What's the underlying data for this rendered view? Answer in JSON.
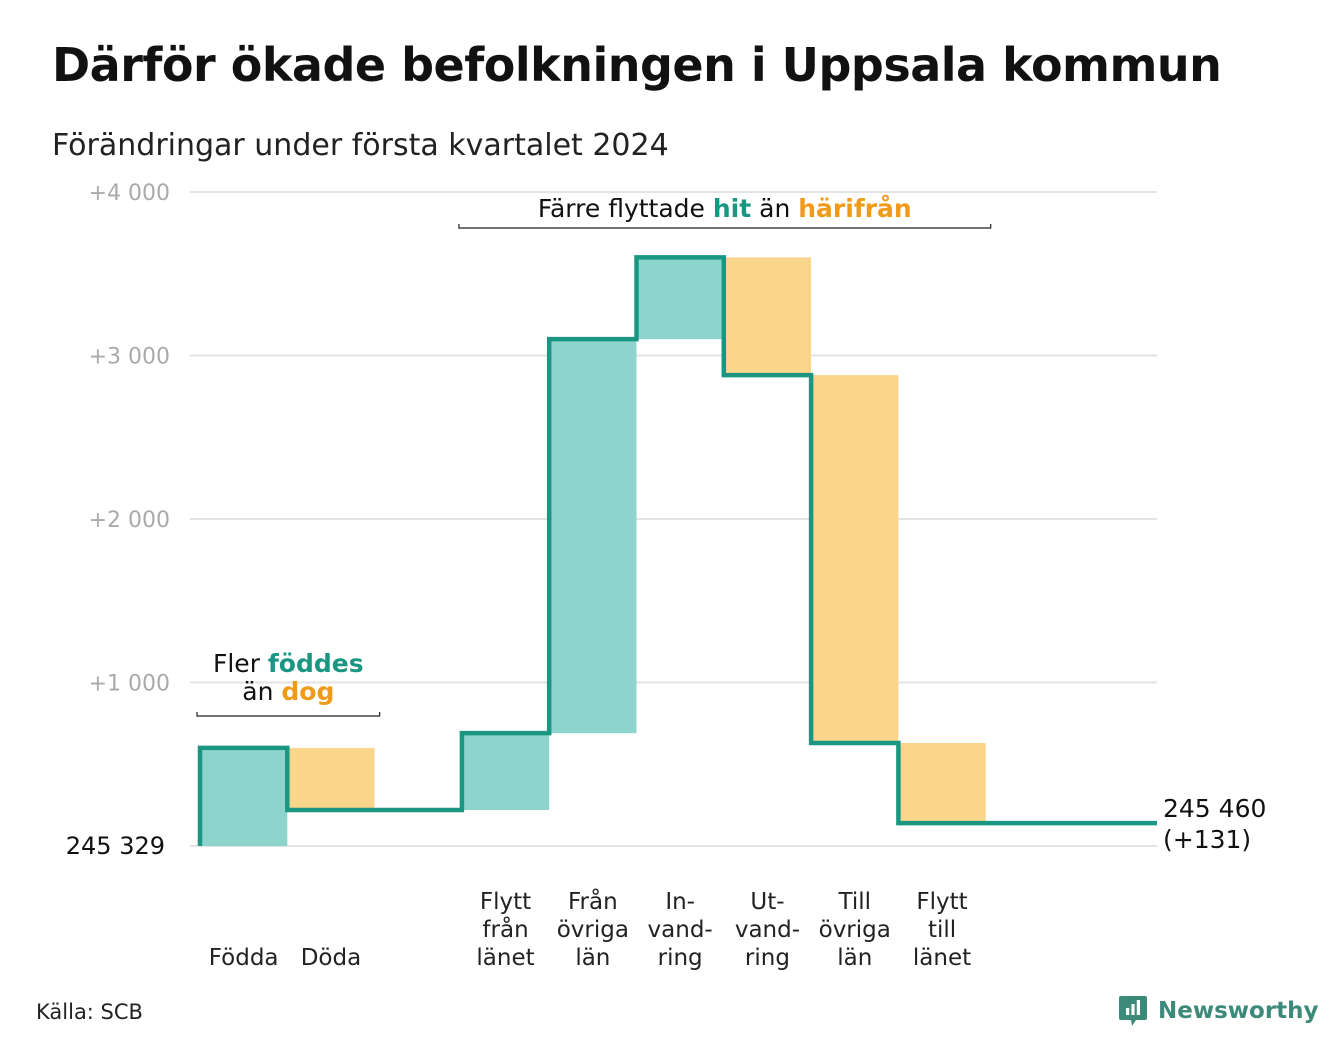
{
  "title": "Därför ökade befolkningen i Uppsala kommun",
  "subtitle": "Förändringar under första kvartalet 2024",
  "source": "Källa: SCB",
  "brand": "Newsworthy",
  "colors": {
    "inflow": "#8dd5cc",
    "outflow": "#fad58c",
    "line": "#1a9683",
    "orange_text": "#f09a1a",
    "grid": "#e3e3e3",
    "tick": "#aaaaaa"
  },
  "chart_data": {
    "type": "bar",
    "subtype": "waterfall",
    "start_value": 245329,
    "start_label": "245  329",
    "end_value": 245460,
    "end_label": "245 460",
    "end_change": "(+131)",
    "y_offset_ticks": [
      {
        "value": 1000,
        "label": "+1  000"
      },
      {
        "value": 2000,
        "label": "+2  000"
      },
      {
        "value": 3000,
        "label": "+3  000"
      },
      {
        "value": 4000,
        "label": "+4  000"
      }
    ],
    "ylim": [
      0,
      4000
    ],
    "grid": true,
    "steps": [
      {
        "label": [
          "Födda"
        ],
        "delta": 600,
        "kind": "in"
      },
      {
        "label": [
          "Döda"
        ],
        "delta": -380,
        "kind": "out"
      },
      {
        "label": [],
        "delta": 0,
        "kind": "gap"
      },
      {
        "label": [
          "Flytt",
          "från",
          "länet"
        ],
        "delta": 470,
        "kind": "in"
      },
      {
        "label": [
          "Från",
          "övriga",
          "län"
        ],
        "delta": 2410,
        "kind": "in"
      },
      {
        "label": [
          "In-",
          "vand-",
          "ring"
        ],
        "delta": 500,
        "kind": "in"
      },
      {
        "label": [
          "Ut-",
          "vand-",
          "ring"
        ],
        "delta": -720,
        "kind": "out"
      },
      {
        "label": [
          "Till",
          "övriga",
          "län"
        ],
        "delta": -2250,
        "kind": "out"
      },
      {
        "label": [
          "Flytt",
          "till",
          "länet"
        ],
        "delta": -490,
        "kind": "out"
      },
      {
        "label": [],
        "delta": 0,
        "kind": "gap"
      }
    ],
    "annotations": [
      {
        "parts": [
          [
            "Fler ",
            "plain"
          ],
          [
            "föddes",
            "in"
          ]
        ],
        "parts2": [
          [
            "än ",
            "plain"
          ],
          [
            "dog",
            "out"
          ]
        ],
        "from_step": 0,
        "to_step": 1
      },
      {
        "parts": [
          [
            "Färre flyttade ",
            "plain"
          ],
          [
            "hit",
            "in"
          ],
          [
            "  än ",
            "plain"
          ],
          [
            "härifrån",
            "out"
          ]
        ],
        "from_step": 3,
        "to_step": 8
      }
    ]
  }
}
